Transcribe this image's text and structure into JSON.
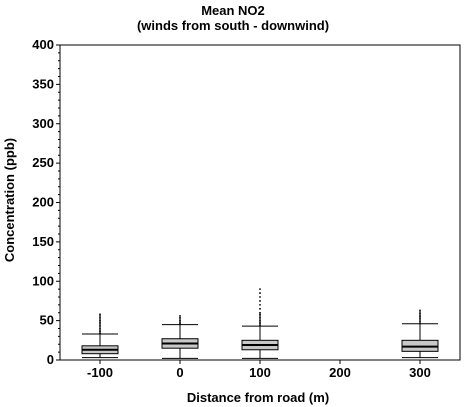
{
  "chart_data": {
    "type": "box",
    "title": "Mean NO2",
    "subtitle": "(winds from south - downwind)",
    "xlabel": "Distance from road (m)",
    "ylabel": "Concentration (ppb)",
    "x_ticks": [
      "-100",
      "0",
      "100",
      "200",
      "300"
    ],
    "ylim": [
      0,
      400
    ],
    "y_ticks": [
      "0",
      "50",
      "100",
      "150",
      "200",
      "250",
      "300",
      "350",
      "400"
    ],
    "grid": false,
    "box_fill": "#c8c8c8",
    "boxes": [
      {
        "x": "-100",
        "whisker_low": 3,
        "q1": 8,
        "median": 13,
        "q3": 18,
        "whisker_high": 33,
        "outliers": [
          34,
          36,
          38,
          40,
          42,
          44,
          46,
          48,
          50,
          52,
          54,
          56,
          58
        ]
      },
      {
        "x": "0",
        "whisker_low": 2,
        "q1": 15,
        "median": 21,
        "q3": 27,
        "whisker_high": 45,
        "outliers": [
          46,
          48,
          50,
          52,
          54,
          56
        ]
      },
      {
        "x": "100",
        "whisker_low": 2,
        "q1": 13,
        "median": 19,
        "q3": 25,
        "whisker_high": 43,
        "outliers": [
          44,
          46,
          48,
          50,
          52,
          54,
          56,
          58,
          60,
          65,
          70,
          75,
          80,
          85,
          90
        ]
      },
      {
        "x": "300",
        "whisker_low": 3,
        "q1": 11,
        "median": 17,
        "q3": 25,
        "whisker_high": 46,
        "outliers": [
          47,
          49,
          51,
          53,
          55,
          57,
          59,
          61,
          63
        ]
      }
    ]
  }
}
